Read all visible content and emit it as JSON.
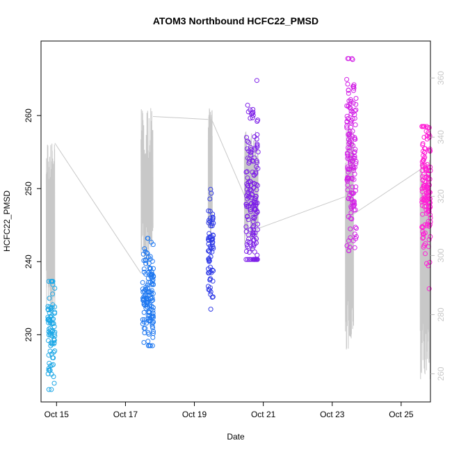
{
  "chart_data": {
    "type": "scatter",
    "title": "ATOM3 Northbound HCFC22_PMSD",
    "xlabel": "Date",
    "ylabel": "HCFC22_PMSD",
    "x_unit": "days since Oct 14",
    "xlim": [
      0.55,
      11.85
    ],
    "ylim": [
      220.8,
      270.2
    ],
    "y2lim": [
      250.5,
      372.5
    ],
    "x_ticks": [
      {
        "value": 1,
        "label": "Oct 15"
      },
      {
        "value": 3,
        "label": "Oct 17"
      },
      {
        "value": 5,
        "label": "Oct 19"
      },
      {
        "value": 7,
        "label": "Oct 21"
      },
      {
        "value": 9,
        "label": "Oct 23"
      },
      {
        "value": 11,
        "label": "Oct 25"
      }
    ],
    "y_ticks": [
      230,
      240,
      250,
      260
    ],
    "y2_ticks": [
      260,
      280,
      300,
      320,
      340,
      360
    ],
    "series": [
      {
        "name": "HCFC22_PMSD",
        "marker": "open-circle",
        "clusters": [
          {
            "x_range": [
              0.75,
              0.95
            ],
            "y_min": 222.5,
            "y_max": 237.3,
            "y_center": 230.5,
            "n": 90,
            "color": "#1ea8e6"
          },
          {
            "x_range": [
              3.5,
              3.82
            ],
            "y_min": 228.5,
            "y_max": 243.2,
            "y_center": 234.8,
            "n": 140,
            "color": "#1f78f0"
          },
          {
            "x_range": [
              5.4,
              5.55
            ],
            "y_min": 233.5,
            "y_max": 249.9,
            "y_center": 242.0,
            "n": 70,
            "color": "#2f3ae6"
          },
          {
            "x_range": [
              6.5,
              6.85
            ],
            "y_min": 240.3,
            "y_max": 264.8,
            "y_center": 249.0,
            "n": 160,
            "color": "#7d1fe8"
          },
          {
            "x_range": [
              9.42,
              9.7
            ],
            "y_min": 241.5,
            "y_max": 267.8,
            "y_center": 254.5,
            "n": 150,
            "color": "#d21fe6"
          },
          {
            "x_range": [
              11.6,
              11.85
            ],
            "y_min": 236.3,
            "y_max": 258.5,
            "y_center": 250.5,
            "n": 150,
            "color": "#ff1fd6"
          }
        ]
      },
      {
        "name": "secondary trace (right axis)",
        "color": "#c8c8c8",
        "axis": "right",
        "bursts": [
          {
            "x_range": [
              0.7,
              0.95
            ],
            "y_min": 280,
            "y_max": 338
          },
          {
            "x_range": [
              3.45,
              3.8
            ],
            "y_min": 296,
            "y_max": 350
          },
          {
            "x_range": [
              5.4,
              5.52
            ],
            "y_min": 306,
            "y_max": 350
          },
          {
            "x_range": [
              6.45,
              6.85
            ],
            "y_min": 301,
            "y_max": 342
          },
          {
            "x_range": [
              9.38,
              9.62
            ],
            "y_min": 268,
            "y_max": 344
          },
          {
            "x_range": [
              11.55,
              11.85
            ],
            "y_min": 258,
            "y_max": 333
          }
        ],
        "connectors": [
          {
            "x": [
              0.95,
              3.45
            ],
            "y": [
              338,
              294
            ]
          },
          {
            "x": [
              3.8,
              5.4
            ],
            "y": [
              347,
              346
            ]
          },
          {
            "x": [
              5.5,
              6.5
            ],
            "y": [
              346,
              319
            ]
          },
          {
            "x": [
              6.82,
              9.4
            ],
            "y": [
              309,
              320
            ]
          },
          {
            "x": [
              9.62,
              11.55
            ],
            "y": [
              314,
              329
            ]
          }
        ]
      }
    ]
  }
}
